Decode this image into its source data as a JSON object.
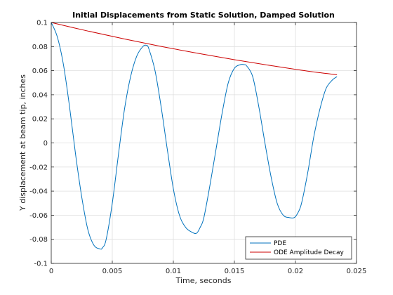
{
  "chart_data": {
    "type": "line",
    "title": "Initial Displacements from Static Solution, Damped Solution",
    "xlabel": "Time, seconds",
    "ylabel": "Y displacement at beam tip, inches",
    "xlim": [
      0,
      0.025
    ],
    "ylim": [
      -0.1,
      0.1
    ],
    "xticks": [
      0,
      0.005,
      0.01,
      0.015,
      0.02,
      0.025
    ],
    "xtick_labels": [
      "0",
      "0.005",
      "0.01",
      "0.015",
      "0.02",
      "0.025"
    ],
    "yticks": [
      -0.1,
      -0.08,
      -0.06,
      -0.04,
      -0.02,
      0,
      0.02,
      0.04,
      0.06,
      0.08,
      0.1
    ],
    "ytick_labels": [
      "-0.1",
      "-0.08",
      "-0.06",
      "-0.04",
      "-0.02",
      "0",
      "0.02",
      "0.04",
      "0.06",
      "0.08",
      "0.1"
    ],
    "grid": true,
    "legend_position": "bottom-right",
    "series": [
      {
        "name": "PDE",
        "color": "#0072BD",
        "x": [
          0,
          0.0005,
          0.001,
          0.0015,
          0.002,
          0.0025,
          0.003,
          0.0035,
          0.004,
          0.0042,
          0.0045,
          0.005,
          0.0055,
          0.006,
          0.0065,
          0.007,
          0.0075,
          0.0078,
          0.008,
          0.0085,
          0.009,
          0.0095,
          0.01,
          0.0105,
          0.011,
          0.0115,
          0.0119,
          0.0122,
          0.0125,
          0.013,
          0.0135,
          0.014,
          0.0145,
          0.015,
          0.0155,
          0.0158,
          0.016,
          0.0165,
          0.017,
          0.0175,
          0.018,
          0.0185,
          0.019,
          0.0195,
          0.0199,
          0.0202,
          0.0205,
          0.021,
          0.0215,
          0.022,
          0.0225,
          0.023,
          0.0234
        ],
        "y": [
          0.1,
          0.088,
          0.065,
          0.03,
          -0.01,
          -0.045,
          -0.072,
          -0.085,
          -0.088,
          -0.087,
          -0.08,
          -0.05,
          -0.01,
          0.028,
          0.055,
          0.072,
          0.08,
          0.081,
          0.078,
          0.06,
          0.03,
          -0.005,
          -0.038,
          -0.06,
          -0.07,
          -0.074,
          -0.075,
          -0.07,
          -0.062,
          -0.035,
          -0.005,
          0.025,
          0.05,
          0.062,
          0.065,
          0.065,
          0.064,
          0.055,
          0.03,
          0.0,
          -0.028,
          -0.05,
          -0.06,
          -0.062,
          -0.062,
          -0.058,
          -0.05,
          -0.025,
          0.005,
          0.028,
          0.045,
          0.052,
          0.055
        ]
      },
      {
        "name": "ODE Amplitude Decay",
        "color": "#CC0000",
        "x": [
          0,
          0.003,
          0.006,
          0.009,
          0.012,
          0.015,
          0.018,
          0.021,
          0.0234
        ],
        "y": [
          0.1,
          0.0929,
          0.0863,
          0.0801,
          0.0744,
          0.0691,
          0.0642,
          0.0596,
          0.0566
        ]
      }
    ]
  }
}
